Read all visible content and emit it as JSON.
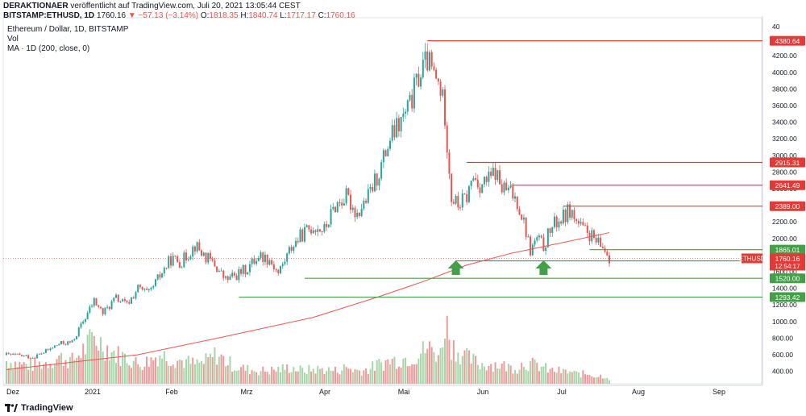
{
  "header": {
    "author": "DERAKTIONAER",
    "published": "veröffentlicht auf TradingView.com, Juli 20, 2021 13:05:44 CEST",
    "symbol": "BITSTAMP:ETHUSD, 1D",
    "last": "1760.16",
    "change": "−57.13 (−3.14%)",
    "o_label": "O:",
    "o": "1818.35",
    "h_label": "H:",
    "h": "1840.74",
    "l_label": "L:",
    "l": "1717.17",
    "c_label": "C:",
    "c": "1760.16"
  },
  "legend": {
    "title": "Ethereum / Dollar, 1D, BITSTAMP",
    "vol": "Vol",
    "ma": "MA · 1D (200, close, 0)"
  },
  "footer": {
    "brand": "TradingView"
  },
  "colors": {
    "up": "#26a69a",
    "down": "#ef5350",
    "vol_up": "#a5d6a7",
    "vol_down": "#ef9a9a",
    "ma": "#ef5350",
    "resistance": "#e53935",
    "support": "#43a047",
    "arrow": "#43a047",
    "last_price_bg": "#e53935"
  },
  "chart_data": {
    "type": "candlestick",
    "x_labels": [
      "Dez",
      "2021",
      "Feb",
      "Mrz",
      "Apr",
      "Mai",
      "Jun",
      "Jul",
      "Aug",
      "Sep"
    ],
    "y_ticks": [
      400,
      600,
      800,
      1000,
      1200,
      1400,
      1600,
      1800,
      2000,
      2200,
      2400,
      2600,
      2800,
      3000,
      3200,
      3400,
      3600,
      3800,
      4000,
      4200
    ],
    "y_tick_labels": [
      "400.00",
      "600.00",
      "800.00",
      "1000.00",
      "1200.00",
      "1400.00",
      "1600.00",
      "1800.00",
      "2000.00",
      "2200.00",
      "2400.00",
      "2600.00",
      "2800.00",
      "3000.00",
      "3200.00",
      "3400.00",
      "3600.00",
      "3800.00",
      "4000.00",
      "4200.00"
    ],
    "top_tick_label": "40",
    "ylim": [
      250,
      4600
    ],
    "last_price": {
      "label": "ETHUSD",
      "value": "1760.16",
      "countdown": "12:54:17"
    },
    "price_path": [
      [
        0,
        600
      ],
      [
        6,
        590
      ],
      [
        12,
        570
      ],
      [
        18,
        640
      ],
      [
        24,
        730
      ],
      [
        30,
        750
      ],
      [
        35,
        1000
      ],
      [
        40,
        1250
      ],
      [
        44,
        1100
      ],
      [
        50,
        1280
      ],
      [
        55,
        1200
      ],
      [
        60,
        1400
      ],
      [
        65,
        1330
      ],
      [
        70,
        1550
      ],
      [
        75,
        1750
      ],
      [
        80,
        1720
      ],
      [
        86,
        1920
      ],
      [
        90,
        1800
      ],
      [
        95,
        1680
      ],
      [
        100,
        1500
      ],
      [
        105,
        1560
      ],
      [
        110,
        1640
      ],
      [
        115,
        1800
      ],
      [
        120,
        1750
      ],
      [
        124,
        1580
      ],
      [
        130,
        1900
      ],
      [
        135,
        2050
      ],
      [
        140,
        2150
      ],
      [
        145,
        2100
      ],
      [
        150,
        2400
      ],
      [
        155,
        2500
      ],
      [
        160,
        2300
      ],
      [
        165,
        2500
      ],
      [
        170,
        2800
      ],
      [
        175,
        3200
      ],
      [
        180,
        3400
      ],
      [
        184,
        3600
      ],
      [
        188,
        3950
      ],
      [
        192,
        4150
      ],
      [
        195,
        3950
      ],
      [
        198,
        3800
      ],
      [
        200,
        3500
      ],
      [
        203,
        2500
      ],
      [
        206,
        2400
      ],
      [
        210,
        2500
      ],
      [
        213,
        2750
      ],
      [
        216,
        2650
      ],
      [
        220,
        2700
      ],
      [
        223,
        2800
      ],
      [
        226,
        2600
      ],
      [
        230,
        2550
      ],
      [
        233,
        2450
      ],
      [
        236,
        2200
      ],
      [
        239,
        1850
      ],
      [
        242,
        2000
      ],
      [
        245,
        1900
      ],
      [
        248,
        2100
      ],
      [
        251,
        2200
      ],
      [
        254,
        2250
      ],
      [
        257,
        2350
      ],
      [
        260,
        2200
      ],
      [
        263,
        2100
      ],
      [
        266,
        2050
      ],
      [
        269,
        1950
      ],
      [
        271,
        1900
      ],
      [
        273,
        1880
      ],
      [
        275,
        1760
      ]
    ],
    "volume_path": [
      [
        0,
        0.35
      ],
      [
        6,
        0.3
      ],
      [
        12,
        0.28
      ],
      [
        18,
        0.32
      ],
      [
        24,
        0.4
      ],
      [
        30,
        0.35
      ],
      [
        36,
        0.55
      ],
      [
        40,
        0.7
      ],
      [
        44,
        0.6
      ],
      [
        50,
        0.45
      ],
      [
        55,
        0.4
      ],
      [
        60,
        0.3
      ],
      [
        65,
        0.35
      ],
      [
        70,
        0.45
      ],
      [
        75,
        0.4
      ],
      [
        80,
        0.35
      ],
      [
        86,
        0.3
      ],
      [
        90,
        0.32
      ],
      [
        96,
        0.45
      ],
      [
        100,
        0.35
      ],
      [
        105,
        0.25
      ],
      [
        110,
        0.22
      ],
      [
        115,
        0.2
      ],
      [
        120,
        0.2
      ],
      [
        124,
        0.22
      ],
      [
        130,
        0.25
      ],
      [
        135,
        0.2
      ],
      [
        140,
        0.22
      ],
      [
        145,
        0.22
      ],
      [
        150,
        0.2
      ],
      [
        155,
        0.25
      ],
      [
        160,
        0.2
      ],
      [
        165,
        0.22
      ],
      [
        170,
        0.3
      ],
      [
        175,
        0.35
      ],
      [
        180,
        0.38
      ],
      [
        184,
        0.4
      ],
      [
        188,
        0.45
      ],
      [
        192,
        0.55
      ],
      [
        195,
        0.5
      ],
      [
        198,
        0.45
      ],
      [
        200,
        1.0
      ],
      [
        203,
        0.6
      ],
      [
        206,
        0.5
      ],
      [
        210,
        0.4
      ],
      [
        213,
        0.35
      ],
      [
        216,
        0.3
      ],
      [
        220,
        0.3
      ],
      [
        223,
        0.3
      ],
      [
        226,
        0.28
      ],
      [
        230,
        0.25
      ],
      [
        233,
        0.25
      ],
      [
        236,
        0.32
      ],
      [
        239,
        0.3
      ],
      [
        242,
        0.28
      ],
      [
        245,
        0.25
      ],
      [
        248,
        0.2
      ],
      [
        251,
        0.2
      ],
      [
        254,
        0.18
      ],
      [
        257,
        0.18
      ],
      [
        260,
        0.15
      ],
      [
        263,
        0.15
      ],
      [
        266,
        0.15
      ],
      [
        269,
        0.12
      ],
      [
        271,
        0.12
      ],
      [
        273,
        0.12
      ],
      [
        275,
        0.08
      ]
    ],
    "ma_path": [
      [
        0,
        420
      ],
      [
        60,
        600
      ],
      [
        100,
        820
      ],
      [
        140,
        1050
      ],
      [
        170,
        1300
      ],
      [
        190,
        1480
      ],
      [
        210,
        1680
      ],
      [
        230,
        1820
      ],
      [
        250,
        1930
      ],
      [
        275,
        2070
      ]
    ],
    "levels": [
      {
        "value": 4380.64,
        "label": "4380.64",
        "kind": "resistance",
        "from_day": 192
      },
      {
        "value": 2915.31,
        "label": "2915.31",
        "kind": "resistance",
        "from_day": 210
      },
      {
        "value": 2641.49,
        "label": "2641.49",
        "kind": "resistance",
        "from_day": 230
      },
      {
        "value": 2389.0,
        "label": "2389.00",
        "kind": "resistance",
        "from_day": 254
      },
      {
        "value": 1865.01,
        "label": "1865.01",
        "kind": "support",
        "from_day": 266
      },
      {
        "value": 1730.0,
        "label": "1730.00",
        "kind": "support",
        "from_day": 205
      },
      {
        "value": 1520.0,
        "label": "1520.00",
        "kind": "support",
        "from_day": 136
      },
      {
        "value": 1293.42,
        "label": "1293.42",
        "kind": "support",
        "from_day": 106
      }
    ],
    "arrows": [
      {
        "day": 205,
        "value": 1600
      },
      {
        "day": 245,
        "value": 1600
      }
    ]
  }
}
